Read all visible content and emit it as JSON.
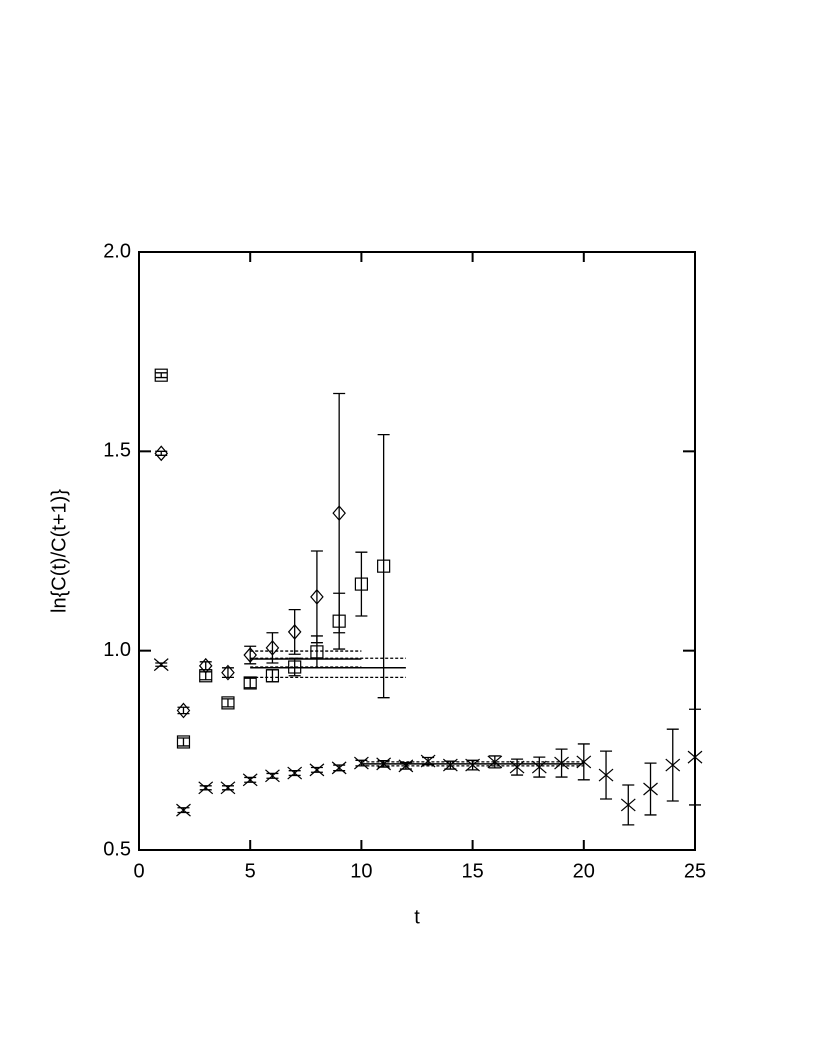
{
  "chart_data": {
    "type": "scatter",
    "xlabel": "t",
    "ylabel": "ln{C(t)/C(t+1)}",
    "xlim": [
      0,
      25
    ],
    "xticks": [
      0,
      5,
      10,
      15,
      20,
      25
    ],
    "ylim": [
      0.5,
      2.0
    ],
    "yticks": [
      {
        "value": 0.5,
        "label": "0.5"
      },
      {
        "value": 1.0,
        "label": "1.0"
      },
      {
        "value": 1.5,
        "label": "1.5"
      },
      {
        "value": 2.0,
        "label": "2.0"
      }
    ],
    "color": "#000000",
    "series": [
      {
        "marker": "square",
        "x": [
          1,
          2,
          3,
          4,
          5,
          6,
          7,
          8,
          9,
          10,
          11
        ],
        "values": [
          1.691,
          0.771,
          0.937,
          0.869,
          0.919,
          0.937,
          0.959,
          0.997,
          1.074,
          1.167,
          1.212
        ],
        "errors": [
          0.006,
          0.01,
          0.01,
          0.01,
          0.012,
          0.015,
          0.022,
          0.04,
          0.07,
          0.08,
          0.33
        ],
        "fit": {
          "x": [
            5,
            12
          ],
          "value": 0.957,
          "error": 0.024
        }
      },
      {
        "marker": "diamond",
        "x": [
          1,
          2,
          3,
          4,
          5,
          6,
          7,
          8,
          9
        ],
        "values": [
          1.495,
          0.85,
          0.962,
          0.945,
          0.989,
          1.007,
          1.047,
          1.135,
          1.345
        ],
        "errors": [
          0.005,
          0.008,
          0.01,
          0.012,
          0.022,
          0.038,
          0.056,
          0.115,
          0.3
        ],
        "fit": {
          "x": [
            5,
            10
          ],
          "value": 0.979,
          "error": 0.02
        }
      },
      {
        "marker": "cross",
        "x": [
          1,
          2,
          3,
          4,
          5,
          6,
          7,
          8,
          9,
          10,
          11,
          12,
          13,
          14,
          15,
          16,
          17,
          18,
          19,
          20,
          21,
          22,
          23,
          24,
          25
        ],
        "values": [
          0.965,
          0.6,
          0.656,
          0.656,
          0.676,
          0.686,
          0.693,
          0.701,
          0.706,
          0.718,
          0.716,
          0.711,
          0.723,
          0.713,
          0.713,
          0.721,
          0.708,
          0.708,
          0.718,
          0.721,
          0.688,
          0.613,
          0.653,
          0.713,
          0.733
        ],
        "errors": [
          0.004,
          0.006,
          0.005,
          0.005,
          0.006,
          0.006,
          0.006,
          0.006,
          0.007,
          0.007,
          0.008,
          0.008,
          0.009,
          0.01,
          0.012,
          0.015,
          0.02,
          0.025,
          0.035,
          0.045,
          0.06,
          0.05,
          0.065,
          0.09,
          0.12
        ],
        "fit": {
          "x": [
            10,
            20
          ],
          "value": 0.716,
          "error": 0.005
        }
      }
    ]
  }
}
